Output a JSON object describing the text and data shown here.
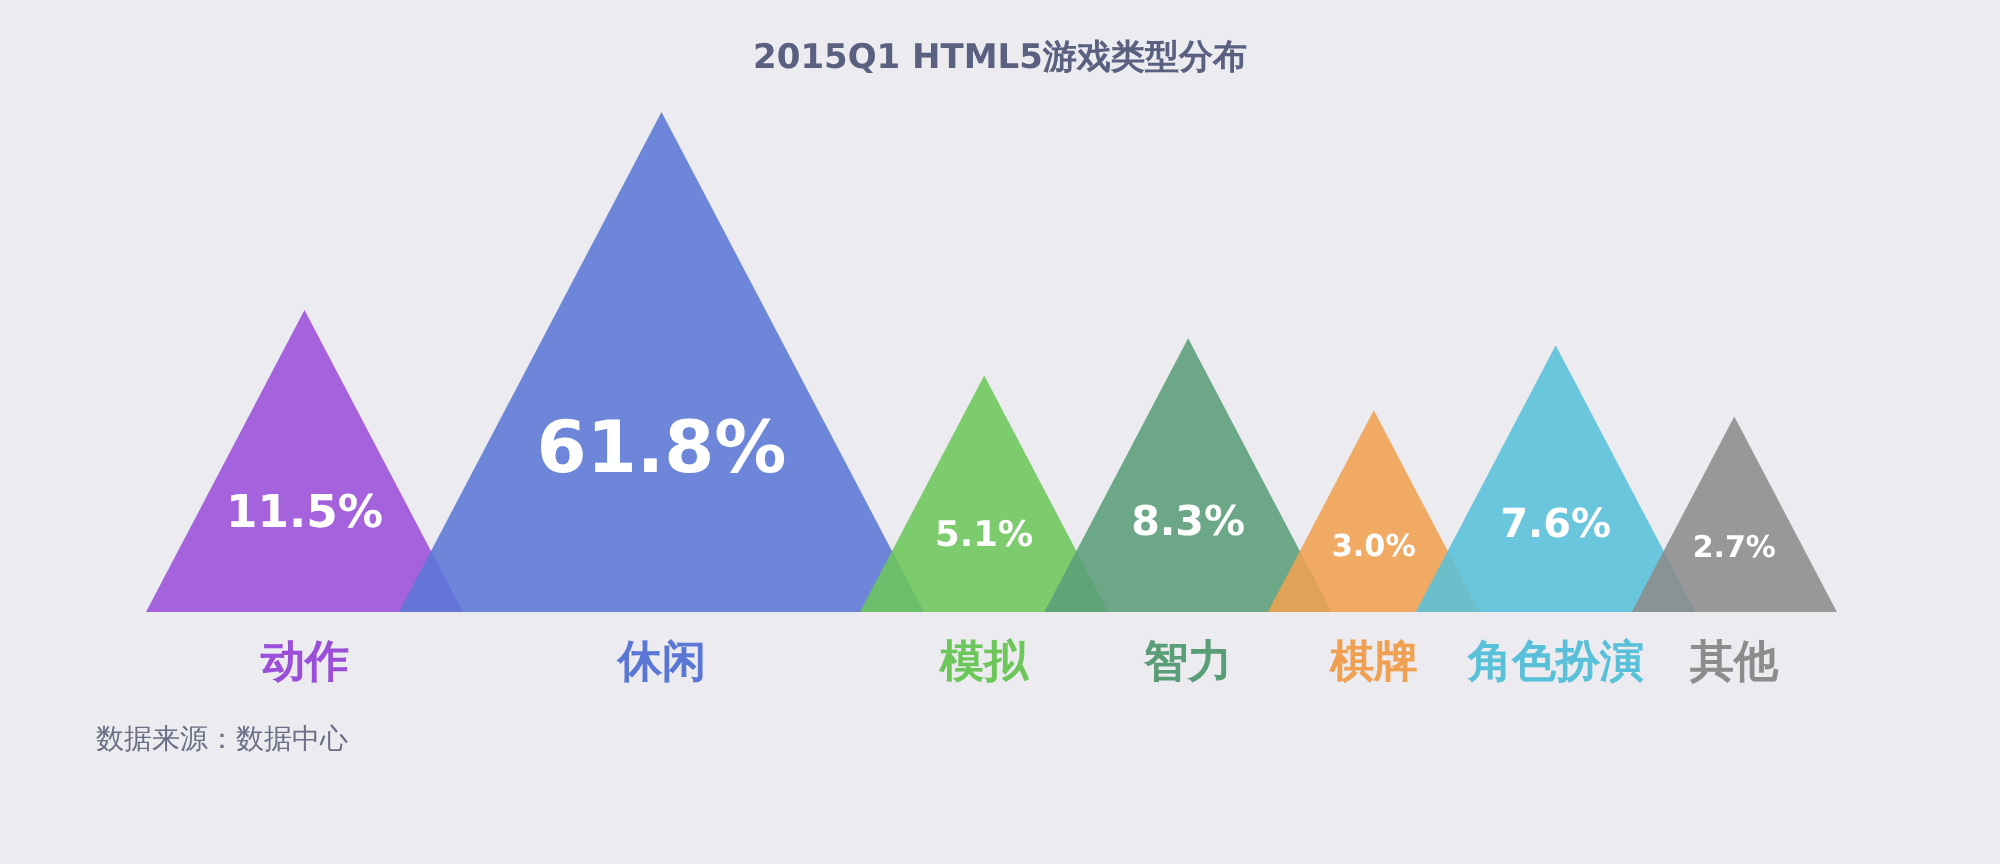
{
  "chart_data": {
    "type": "other",
    "title": "2015Q1 HTML5游戏类型分布",
    "categories": [
      "动作",
      "休闲",
      "模拟",
      "智力",
      "棋牌",
      "角色扮演",
      "其他"
    ],
    "values": [
      11.5,
      61.8,
      5.1,
      8.3,
      3.0,
      7.6,
      2.7
    ],
    "value_labels": [
      "11.5%",
      "61.8%",
      "5.1%",
      "8.3%",
      "3.0%",
      "7.6%",
      "2.7%"
    ],
    "colors": [
      "#9b4fd9",
      "#5b77d6",
      "#6cc65a",
      "#5a9e78",
      "#f0a050",
      "#58c0d8",
      "#8c8c8c"
    ],
    "annotations": [
      "数据来源：数据中心"
    ]
  }
}
